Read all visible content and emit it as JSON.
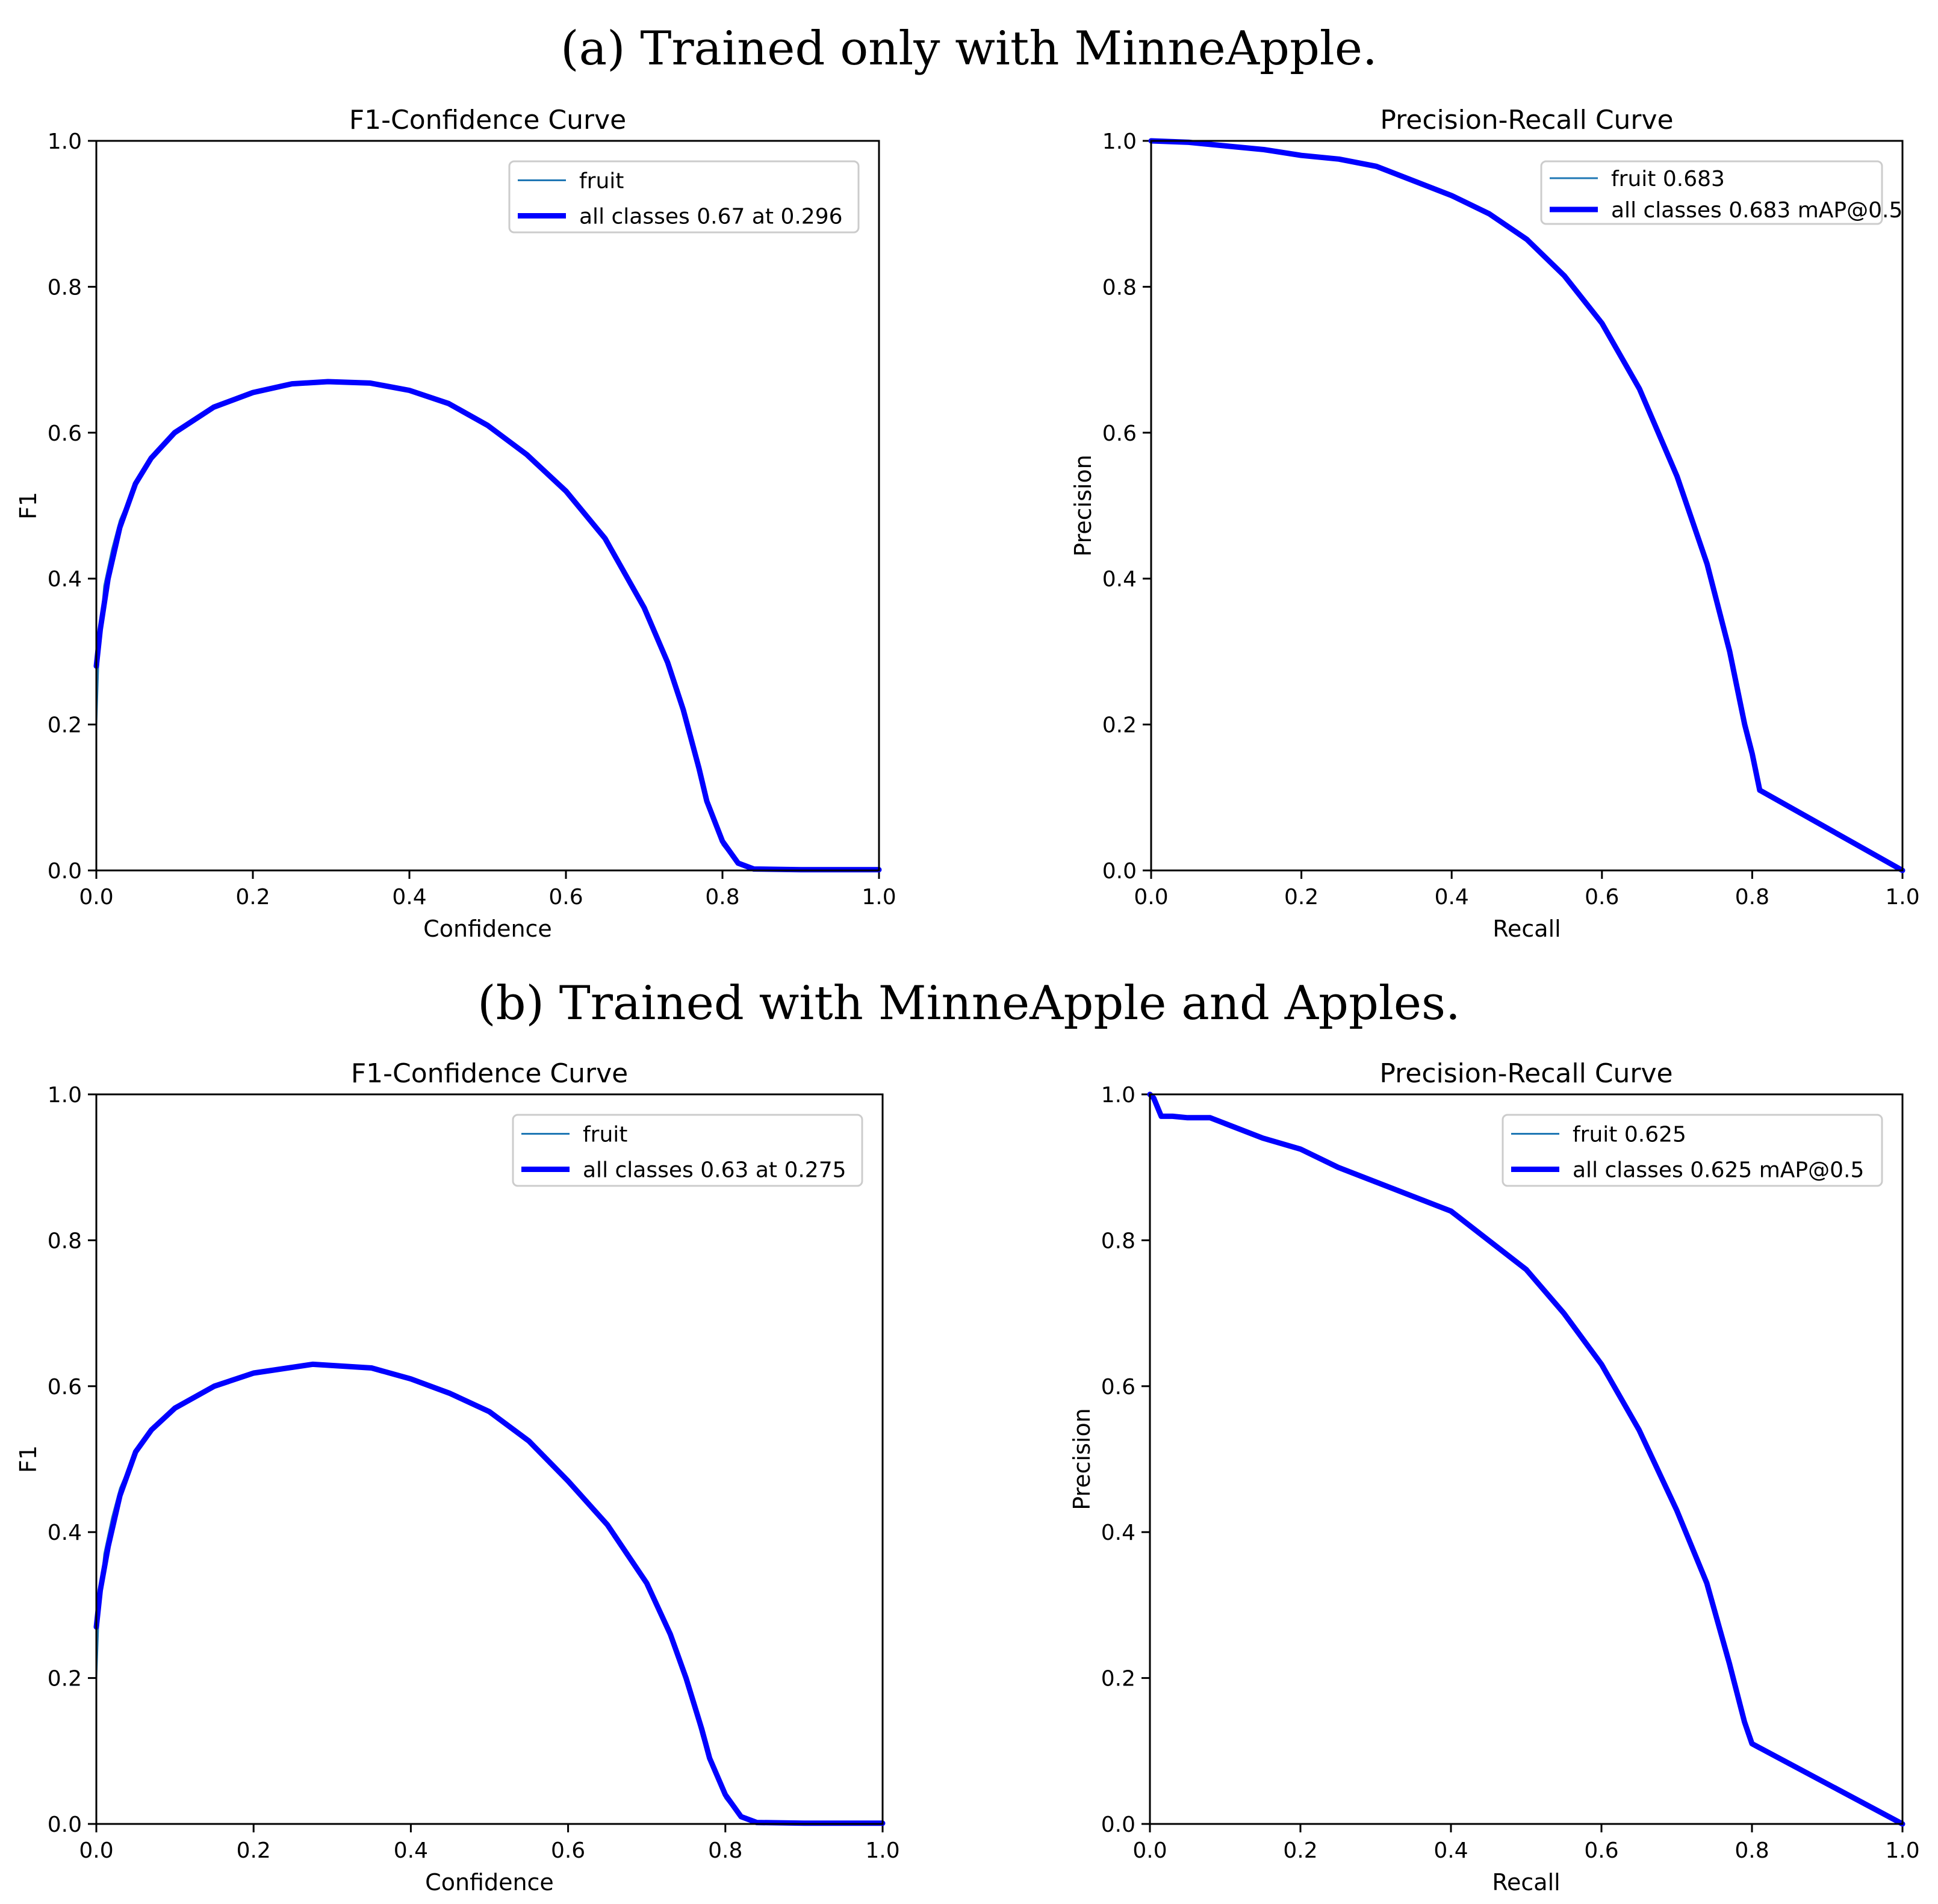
{
  "sections": [
    {
      "title": "(a) Trained only with MinneApple."
    },
    {
      "title": "(b) Trained with MinneApple and Apples."
    }
  ],
  "colors": {
    "thin": "#1f77b4",
    "thick": "#0000ff",
    "axis": "#000000"
  },
  "chart_data": [
    {
      "type": "line",
      "title": "F1-Confidence Curve",
      "xlabel": "Confidence",
      "ylabel": "F1",
      "xlim": [
        0,
        1
      ],
      "ylim": [
        0,
        1
      ],
      "xticks": [
        "0.0",
        "0.2",
        "0.4",
        "0.6",
        "0.8",
        "1.0"
      ],
      "yticks": [
        "0.0",
        "0.2",
        "0.4",
        "0.6",
        "0.8",
        "1.0"
      ],
      "legend_position": "top-right",
      "series": [
        {
          "name": "fruit",
          "style": "thin",
          "x": [
            0,
            0.003,
            0.01,
            0.02,
            0.03,
            0.05,
            0.07,
            0.1,
            0.15,
            0.2,
            0.25,
            0.296,
            0.35,
            0.4,
            0.45,
            0.5,
            0.55,
            0.6,
            0.65,
            0.7,
            0.73,
            0.75,
            0.77,
            0.78,
            0.8,
            0.82,
            0.84,
            0.9,
            1.0
          ],
          "y": [
            0.2,
            0.3,
            0.39,
            0.44,
            0.48,
            0.53,
            0.565,
            0.6,
            0.635,
            0.655,
            0.667,
            0.67,
            0.668,
            0.658,
            0.64,
            0.61,
            0.57,
            0.52,
            0.455,
            0.36,
            0.285,
            0.22,
            0.13,
            0.09,
            0.035,
            0.008,
            0.002,
            0.001,
            0.001
          ]
        },
        {
          "name": "all classes 0.67 at 0.296",
          "style": "thick",
          "x": [
            0,
            0.005,
            0.015,
            0.03,
            0.05,
            0.07,
            0.1,
            0.15,
            0.2,
            0.25,
            0.296,
            0.35,
            0.4,
            0.45,
            0.5,
            0.55,
            0.6,
            0.65,
            0.7,
            0.73,
            0.75,
            0.77,
            0.78,
            0.8,
            0.82,
            0.84,
            0.9,
            1.0
          ],
          "y": [
            0.28,
            0.33,
            0.4,
            0.47,
            0.53,
            0.565,
            0.6,
            0.635,
            0.655,
            0.667,
            0.67,
            0.668,
            0.658,
            0.64,
            0.61,
            0.57,
            0.52,
            0.455,
            0.36,
            0.285,
            0.22,
            0.14,
            0.095,
            0.04,
            0.01,
            0.002,
            0.001,
            0.001
          ]
        }
      ]
    },
    {
      "type": "line",
      "title": "Precision-Recall Curve",
      "xlabel": "Recall",
      "ylabel": "Precision",
      "xlim": [
        0,
        1
      ],
      "ylim": [
        0,
        1
      ],
      "xticks": [
        "0.0",
        "0.2",
        "0.4",
        "0.6",
        "0.8",
        "1.0"
      ],
      "yticks": [
        "0.0",
        "0.2",
        "0.4",
        "0.6",
        "0.8",
        "1.0"
      ],
      "legend_position": "top-right",
      "series": [
        {
          "name": "fruit 0.683",
          "style": "thin",
          "x": [
            0,
            0.05,
            0.1,
            0.15,
            0.2,
            0.25,
            0.3,
            0.35,
            0.4,
            0.45,
            0.5,
            0.55,
            0.6,
            0.65,
            0.7,
            0.74,
            0.77,
            0.79,
            0.8,
            0.81,
            1.0
          ],
          "y": [
            1.0,
            0.998,
            0.993,
            0.988,
            0.98,
            0.975,
            0.965,
            0.945,
            0.925,
            0.9,
            0.865,
            0.815,
            0.75,
            0.66,
            0.54,
            0.42,
            0.3,
            0.2,
            0.16,
            0.11,
            0.0
          ]
        },
        {
          "name": "all classes 0.683 mAP@0.5",
          "style": "thick",
          "x": [
            0,
            0.05,
            0.1,
            0.15,
            0.2,
            0.25,
            0.3,
            0.35,
            0.4,
            0.45,
            0.5,
            0.55,
            0.6,
            0.65,
            0.7,
            0.74,
            0.77,
            0.79,
            0.8,
            0.81,
            1.0
          ],
          "y": [
            1.0,
            0.998,
            0.993,
            0.988,
            0.98,
            0.975,
            0.965,
            0.945,
            0.925,
            0.9,
            0.865,
            0.815,
            0.75,
            0.66,
            0.54,
            0.42,
            0.3,
            0.2,
            0.16,
            0.11,
            0.0
          ]
        }
      ]
    },
    {
      "type": "line",
      "title": "F1-Confidence Curve",
      "xlabel": "Confidence",
      "ylabel": "F1",
      "xlim": [
        0,
        1
      ],
      "ylim": [
        0,
        1
      ],
      "xticks": [
        "0.0",
        "0.2",
        "0.4",
        "0.6",
        "0.8",
        "1.0"
      ],
      "yticks": [
        "0.0",
        "0.2",
        "0.4",
        "0.6",
        "0.8",
        "1.0"
      ],
      "legend_position": "top-right",
      "series": [
        {
          "name": "fruit",
          "style": "thin",
          "x": [
            0,
            0.003,
            0.01,
            0.02,
            0.03,
            0.05,
            0.07,
            0.1,
            0.15,
            0.2,
            0.275,
            0.35,
            0.4,
            0.45,
            0.5,
            0.55,
            0.6,
            0.65,
            0.7,
            0.73,
            0.75,
            0.77,
            0.78,
            0.8,
            0.82,
            0.84,
            0.9,
            1.0
          ],
          "y": [
            0.2,
            0.29,
            0.37,
            0.42,
            0.46,
            0.51,
            0.54,
            0.57,
            0.6,
            0.618,
            0.63,
            0.625,
            0.61,
            0.59,
            0.565,
            0.525,
            0.47,
            0.41,
            0.33,
            0.26,
            0.2,
            0.12,
            0.085,
            0.035,
            0.008,
            0.002,
            0.001,
            0.001
          ]
        },
        {
          "name": "all classes 0.63 at 0.275",
          "style": "thick",
          "x": [
            0,
            0.005,
            0.015,
            0.03,
            0.05,
            0.07,
            0.1,
            0.15,
            0.2,
            0.275,
            0.35,
            0.4,
            0.45,
            0.5,
            0.55,
            0.6,
            0.65,
            0.7,
            0.73,
            0.75,
            0.77,
            0.78,
            0.8,
            0.82,
            0.84,
            0.9,
            1.0
          ],
          "y": [
            0.27,
            0.32,
            0.38,
            0.45,
            0.51,
            0.54,
            0.57,
            0.6,
            0.618,
            0.63,
            0.625,
            0.61,
            0.59,
            0.565,
            0.525,
            0.47,
            0.41,
            0.33,
            0.26,
            0.2,
            0.13,
            0.09,
            0.04,
            0.01,
            0.002,
            0.001,
            0.001
          ]
        }
      ]
    },
    {
      "type": "line",
      "title": "Precision-Recall Curve",
      "xlabel": "Recall",
      "ylabel": "Precision",
      "xlim": [
        0,
        1
      ],
      "ylim": [
        0,
        1
      ],
      "xticks": [
        "0.0",
        "0.2",
        "0.4",
        "0.6",
        "0.8",
        "1.0"
      ],
      "yticks": [
        "0.0",
        "0.2",
        "0.4",
        "0.6",
        "0.8",
        "1.0"
      ],
      "legend_position": "top-right",
      "series": [
        {
          "name": "fruit 0.625",
          "style": "thin",
          "x": [
            0,
            0.005,
            0.015,
            0.03,
            0.05,
            0.08,
            0.1,
            0.15,
            0.2,
            0.25,
            0.3,
            0.35,
            0.4,
            0.45,
            0.5,
            0.55,
            0.6,
            0.65,
            0.7,
            0.74,
            0.77,
            0.79,
            0.8,
            1.0
          ],
          "y": [
            1.0,
            0.995,
            0.97,
            0.97,
            0.968,
            0.968,
            0.96,
            0.94,
            0.925,
            0.9,
            0.88,
            0.86,
            0.84,
            0.8,
            0.76,
            0.7,
            0.63,
            0.54,
            0.43,
            0.33,
            0.22,
            0.14,
            0.11,
            0.0
          ]
        },
        {
          "name": "all classes 0.625 mAP@0.5",
          "style": "thick",
          "x": [
            0,
            0.005,
            0.015,
            0.03,
            0.05,
            0.08,
            0.1,
            0.15,
            0.2,
            0.25,
            0.3,
            0.35,
            0.4,
            0.45,
            0.5,
            0.55,
            0.6,
            0.65,
            0.7,
            0.74,
            0.77,
            0.79,
            0.8,
            1.0
          ],
          "y": [
            1.0,
            0.995,
            0.97,
            0.97,
            0.968,
            0.968,
            0.96,
            0.94,
            0.925,
            0.9,
            0.88,
            0.86,
            0.84,
            0.8,
            0.76,
            0.7,
            0.63,
            0.54,
            0.43,
            0.33,
            0.22,
            0.14,
            0.11,
            0.0
          ]
        }
      ]
    }
  ]
}
